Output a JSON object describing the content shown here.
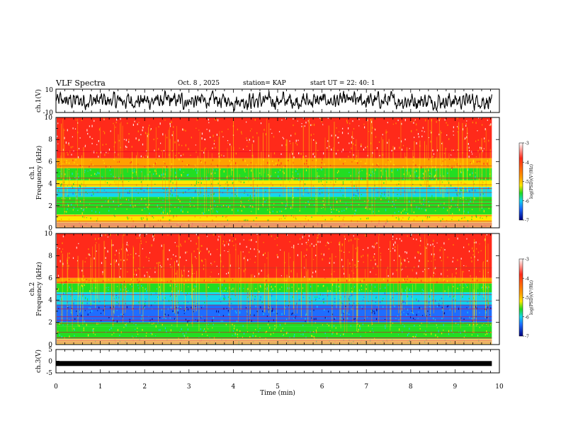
{
  "header": {
    "title": "VLF Spectra",
    "date": "Oct. 8 , 2025",
    "station": "station= KAP",
    "start": "start UT = 22: 40: 1"
  },
  "colors": {
    "red": "#ff2a1a",
    "orange": "#ffa000",
    "yellow": "#ffe800",
    "green": "#22dd22",
    "cyan": "#14d6ee",
    "blue": "#1f6dff",
    "navy": "#000080",
    "line": "#000000"
  },
  "chart_data": [
    {
      "type": "line",
      "panel": "ch1-waveform",
      "ylabel": "ch.1(V)",
      "ylim": [
        -10,
        10
      ],
      "yticks": [
        "10",
        "-10"
      ],
      "xlim": [
        0,
        10
      ],
      "x_end": 9.83
    },
    {
      "type": "heatmap",
      "panel": "ch1-spectrogram",
      "ylabel_line1": "ch.1",
      "ylabel_line2": "Frequency (kHz)",
      "ylim": [
        0,
        10
      ],
      "yticks": [
        "0",
        "2",
        "4",
        "6",
        "8",
        "10"
      ],
      "xlim": [
        0,
        10
      ],
      "x_end": 9.83,
      "colorbar": {
        "label": "log(PSD)(V²/Hz)",
        "ticks": [
          "-3",
          "-4",
          "-5",
          "-6",
          "-7"
        ],
        "range": [
          -7,
          -3
        ]
      },
      "bands_khz": [
        {
          "from": 6.3,
          "to": 10.0,
          "level": "red"
        },
        {
          "from": 5.4,
          "to": 6.3,
          "level": "orange"
        },
        {
          "from": 4.3,
          "to": 5.4,
          "level": "green"
        },
        {
          "from": 3.7,
          "to": 4.3,
          "level": "yellow"
        },
        {
          "from": 2.8,
          "to": 3.7,
          "level": "cyan"
        },
        {
          "from": 2.3,
          "to": 2.8,
          "level": "green"
        },
        {
          "from": 1.2,
          "to": 2.3,
          "level": "green"
        },
        {
          "from": 0.5,
          "to": 1.2,
          "level": "yellow"
        },
        {
          "from": 0.0,
          "to": 0.5,
          "level": "orange"
        }
      ]
    },
    {
      "type": "heatmap",
      "panel": "ch2-spectrogram",
      "ylabel_line1": "ch.2",
      "ylabel_line2": "Frequency (kHz)",
      "ylim": [
        0,
        10
      ],
      "yticks": [
        "0",
        "2",
        "4",
        "6",
        "8",
        "10"
      ],
      "xlim": [
        0,
        10
      ],
      "x_end": 9.83,
      "colorbar": {
        "label": "log(PSD)(V²/Hz)",
        "ticks": [
          "-3",
          "-4",
          "-5",
          "-6",
          "-7"
        ],
        "range": [
          -7,
          -3
        ]
      },
      "bands_khz": [
        {
          "from": 6.0,
          "to": 10.0,
          "level": "red"
        },
        {
          "from": 5.5,
          "to": 6.0,
          "level": "orange"
        },
        {
          "from": 4.7,
          "to": 5.5,
          "level": "green"
        },
        {
          "from": 3.6,
          "to": 4.7,
          "level": "cyan"
        },
        {
          "from": 2.0,
          "to": 3.6,
          "level": "blue"
        },
        {
          "from": 1.6,
          "to": 2.0,
          "level": "green"
        },
        {
          "from": 0.5,
          "to": 1.6,
          "level": "green"
        },
        {
          "from": 0.0,
          "to": 0.5,
          "level": "yellow"
        }
      ]
    },
    {
      "type": "line",
      "panel": "ch3-waveform",
      "ylabel": "ch.3(V)",
      "ylim": [
        -5,
        5
      ],
      "yticks": [
        "5",
        "0",
        "-5"
      ],
      "xlim": [
        0,
        10
      ],
      "x_end": 9.83,
      "level_v": -1.0
    }
  ],
  "xaxis": {
    "label": "Time (min)",
    "ticks": [
      "0",
      "1",
      "2",
      "3",
      "4",
      "5",
      "6",
      "7",
      "8",
      "9",
      "10"
    ]
  }
}
